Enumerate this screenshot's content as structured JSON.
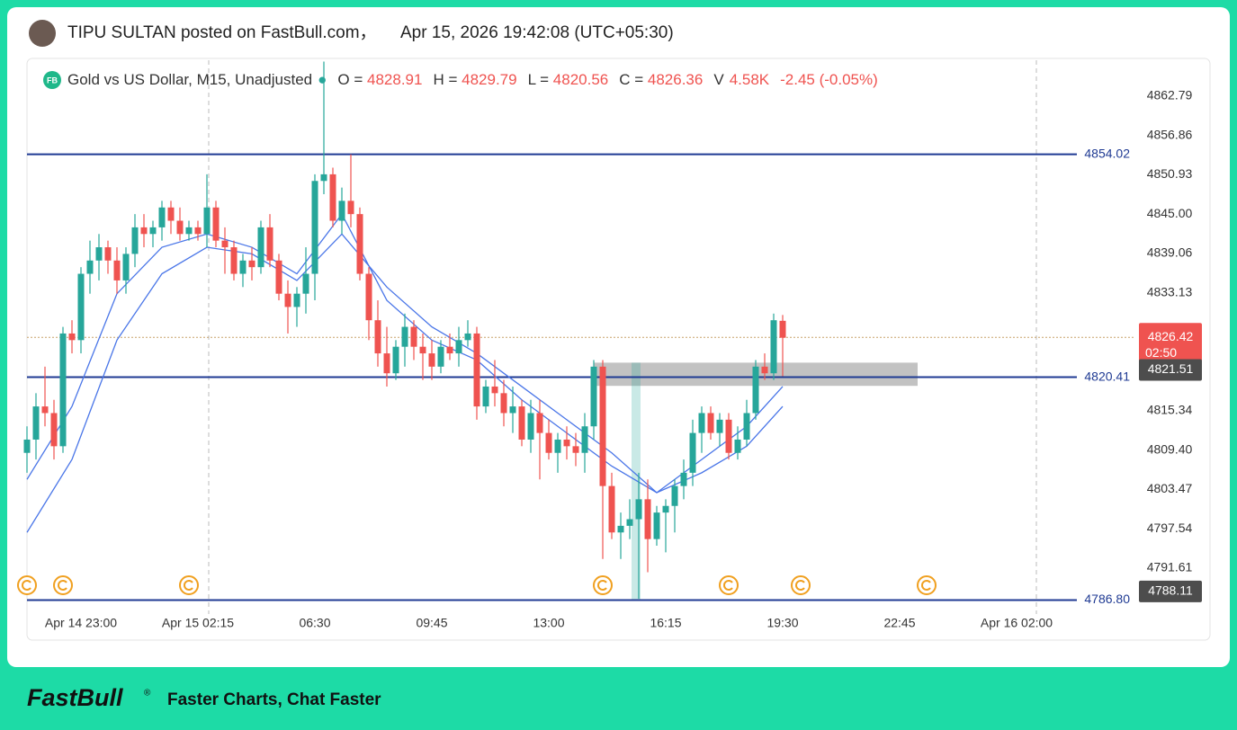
{
  "header": {
    "author": "TIPU SULTAN posted on FastBull.com，",
    "timestamp": "Apr 15, 2026 19:42:08 (UTC+05:30)"
  },
  "chart_data": {
    "type": "candlestick",
    "title": "Gold vs US Dollar, M15, Unadjusted",
    "badge": "FB",
    "ohlc_labels": [
      "O = ",
      "H = ",
      "L = ",
      "C = "
    ],
    "volume_prefix": "V",
    "volume_label": "4.58K",
    "change_label": "-2.45 (-0.05%)",
    "up_color": "#26a69a",
    "down_color": "#ef5350",
    "candles": [
      [
        4809,
        4813,
        4806,
        4811
      ],
      [
        4811,
        4818,
        4808,
        4816
      ],
      [
        4816,
        4822,
        4813,
        4815
      ],
      [
        4815,
        4817,
        4808,
        4810
      ],
      [
        4810,
        4828,
        4809,
        4827
      ],
      [
        4827,
        4829,
        4824,
        4826
      ],
      [
        4826,
        4837,
        4824,
        4836
      ],
      [
        4836,
        4841,
        4833,
        4838
      ],
      [
        4838,
        4842,
        4835,
        4840
      ],
      [
        4840,
        4841,
        4836,
        4838
      ],
      [
        4838,
        4840,
        4833,
        4835
      ],
      [
        4835,
        4840,
        4833,
        4839
      ],
      [
        4839,
        4845,
        4837,
        4843
      ],
      [
        4843,
        4845,
        4840,
        4842
      ],
      [
        4842,
        4844,
        4840,
        4843
      ],
      [
        4843,
        4847,
        4841,
        4846
      ],
      [
        4846,
        4847,
        4842,
        4844
      ],
      [
        4844,
        4846,
        4841,
        4842
      ],
      [
        4842,
        4844,
        4841,
        4843
      ],
      [
        4843,
        4844,
        4841,
        4842
      ],
      [
        4842,
        4851,
        4840,
        4846
      ],
      [
        4846,
        4847,
        4840,
        4841
      ],
      [
        4841,
        4843,
        4836,
        4840
      ],
      [
        4840,
        4841,
        4835,
        4836
      ],
      [
        4836,
        4839,
        4834,
        4838
      ],
      [
        4838,
        4840,
        4835,
        4837
      ],
      [
        4837,
        4844,
        4836,
        4843
      ],
      [
        4843,
        4845,
        4837,
        4838
      ],
      [
        4838,
        4839,
        4832,
        4833
      ],
      [
        4833,
        4835,
        4827,
        4831
      ],
      [
        4831,
        4834,
        4828,
        4833
      ],
      [
        4833,
        4840,
        4830,
        4836
      ],
      [
        4836,
        4851,
        4832,
        4850
      ],
      [
        4850,
        4868,
        4848,
        4851
      ],
      [
        4851,
        4852,
        4843,
        4844
      ],
      [
        4844,
        4849,
        4842,
        4847
      ],
      [
        4847,
        4854,
        4843,
        4845
      ],
      [
        4845,
        4846,
        4835,
        4836
      ],
      [
        4836,
        4837,
        4826,
        4829
      ],
      [
        4829,
        4832,
        4822,
        4824
      ],
      [
        4824,
        4828,
        4819,
        4821
      ],
      [
        4821,
        4826,
        4820,
        4825
      ],
      [
        4825,
        4830,
        4822,
        4828
      ],
      [
        4828,
        4829,
        4823,
        4825
      ],
      [
        4825,
        4827,
        4820,
        4824
      ],
      [
        4824,
        4826,
        4820,
        4822
      ],
      [
        4822,
        4826,
        4821,
        4825
      ],
      [
        4825,
        4827,
        4823,
        4824
      ],
      [
        4824,
        4828,
        4822,
        4826
      ],
      [
        4826,
        4829,
        4825,
        4827
      ],
      [
        4827,
        4828,
        4814,
        4816
      ],
      [
        4816,
        4820,
        4815,
        4819
      ],
      [
        4819,
        4823,
        4816,
        4818
      ],
      [
        4818,
        4820,
        4813,
        4815
      ],
      [
        4815,
        4819,
        4812,
        4816
      ],
      [
        4816,
        4817,
        4810,
        4811
      ],
      [
        4811,
        4817,
        4809,
        4815
      ],
      [
        4815,
        4817,
        4805,
        4812
      ],
      [
        4812,
        4814,
        4808,
        4809
      ],
      [
        4809,
        4812,
        4806,
        4811
      ],
      [
        4811,
        4813,
        4808,
        4810
      ],
      [
        4810,
        4812,
        4807,
        4809
      ],
      [
        4809,
        4815,
        4806,
        4813
      ],
      [
        4813,
        4823,
        4811,
        4822
      ],
      [
        4822,
        4823,
        4793,
        4804
      ],
      [
        4804,
        4806,
        4796,
        4797
      ],
      [
        4797,
        4800,
        4793,
        4798
      ],
      [
        4798,
        4802,
        4796,
        4799
      ],
      [
        4799,
        4806,
        4787,
        4802
      ],
      [
        4802,
        4805,
        4791,
        4796
      ],
      [
        4796,
        4801,
        4795,
        4800
      ],
      [
        4800,
        4802,
        4794,
        4801
      ],
      [
        4801,
        4805,
        4797,
        4804
      ],
      [
        4804,
        4808,
        4802,
        4806
      ],
      [
        4806,
        4814,
        4804,
        4812
      ],
      [
        4812,
        4816,
        4809,
        4815
      ],
      [
        4815,
        4816,
        4811,
        4812
      ],
      [
        4812,
        4815,
        4810,
        4814
      ],
      [
        4814,
        4815,
        4808,
        4809
      ],
      [
        4809,
        4813,
        4808,
        4811
      ],
      [
        4811,
        4817,
        4810,
        4815
      ],
      [
        4815,
        4823,
        4814,
        4822
      ],
      [
        4822,
        4824,
        4820,
        4821
      ],
      [
        4821,
        4830,
        4820,
        4829
      ],
      [
        4828.91,
        4829.79,
        4820.56,
        4826.36
      ]
    ],
    "ma_lines": [
      {
        "color": "#4a76e8",
        "x": [
          0,
          5,
          10,
          15,
          20,
          25,
          30,
          35,
          40,
          45,
          50,
          55,
          60,
          65,
          70,
          75,
          80,
          84
        ],
        "values": [
          4805,
          4816,
          4833,
          4840,
          4842,
          4840,
          4836,
          4845,
          4832,
          4826,
          4823,
          4817,
          4812,
          4807,
          4803,
          4808,
          4813,
          4819
        ]
      },
      {
        "color": "#4a76e8",
        "x": [
          0,
          5,
          10,
          15,
          20,
          25,
          30,
          35,
          40,
          45,
          50,
          55,
          60,
          65,
          70,
          75,
          80,
          84
        ],
        "values": [
          4797,
          4808,
          4826,
          4836,
          4840,
          4839,
          4835,
          4842,
          4834,
          4828,
          4824,
          4819,
          4814,
          4809,
          4803,
          4806,
          4810,
          4816
        ]
      }
    ],
    "levels": [
      4854.02,
      4820.41,
      {
        "value": 4786.8,
        "label": "4786.80"
      }
    ],
    "level_color": "#1f3a93",
    "zone": {
      "from": 63,
      "to": 99,
      "low": 4819.1,
      "high": 4822.6
    },
    "band": {
      "from": 67,
      "to": 68,
      "low": 4786.8,
      "high": 4822.6
    },
    "current_price": 4826.42,
    "countdown": "02:50",
    "price_tags": [
      4821.51,
      4788.11
    ],
    "events": [
      0,
      4,
      18,
      64,
      78,
      86,
      100
    ],
    "vlines": [
      20.2,
      112.2
    ],
    "xlim": [
      0,
      123
    ],
    "xticks": [
      {
        "value": 6,
        "label": "Apr 14 23:00"
      },
      {
        "value": 19,
        "label": "Apr 15 02:15"
      },
      {
        "value": 32,
        "label": "06:30"
      },
      {
        "value": 45,
        "label": "09:45"
      },
      {
        "value": 58,
        "label": "13:00"
      },
      {
        "value": 71,
        "label": "16:15"
      },
      {
        "value": 84,
        "label": "19:30"
      },
      {
        "value": 97,
        "label": "22:45"
      },
      {
        "value": 110,
        "label": "Apr 16 02:00"
      }
    ],
    "ylim": [
      4784.7,
      4868.2
    ],
    "yticks": [
      4862.79,
      4856.86,
      4850.93,
      {
        "value": 4845,
        "label": "4845.00"
      },
      4839.06,
      4833.13,
      4815.34,
      {
        "value": 4809.4,
        "label": "4809.40"
      },
      4803.47,
      4797.54,
      4791.61
    ]
  },
  "footer": {
    "brand": "FastBull",
    "mark": "®",
    "slogan": "Faster Charts, Chat Faster"
  }
}
